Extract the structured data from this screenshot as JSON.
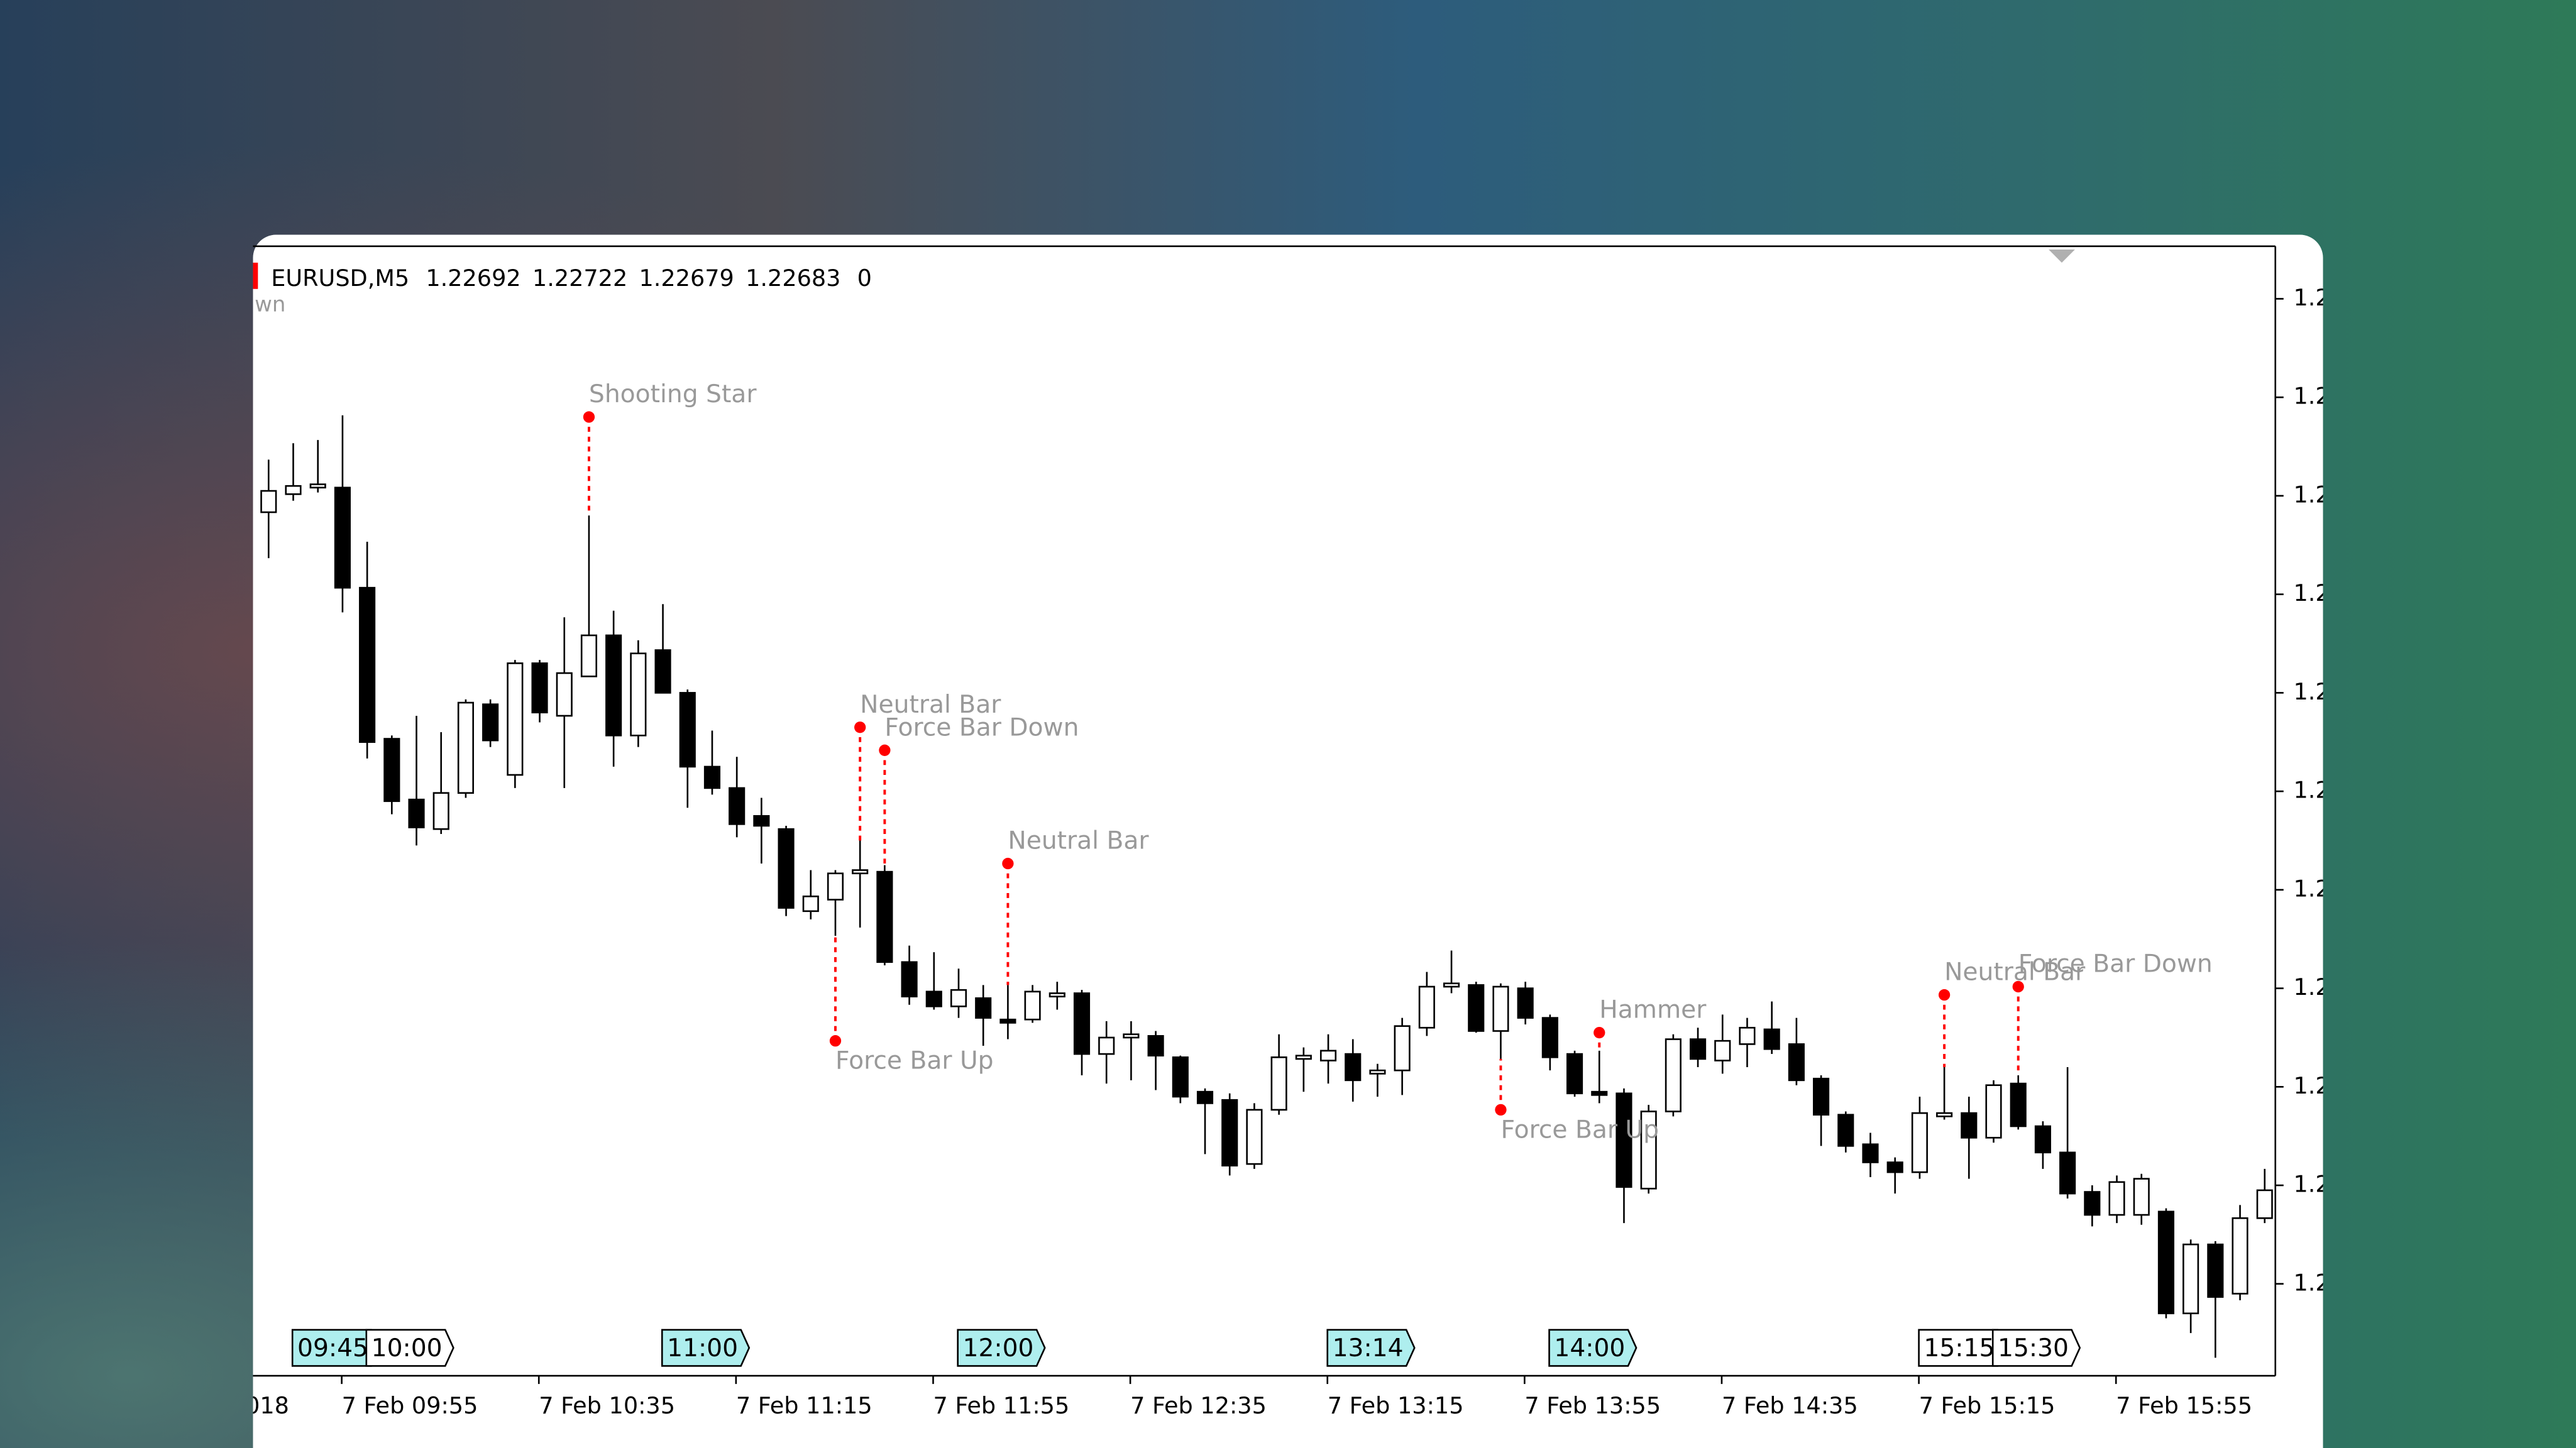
{
  "chart_data": {
    "type": "candlestick",
    "header": {
      "symbol": "EURUSD,M5",
      "open": 1.22692,
      "high": 1.22722,
      "low": 1.22679,
      "close": 1.22683,
      "volume": 0
    },
    "partial_labels": {
      "legend": "wn",
      "x": "018"
    },
    "categories": [
      null,
      null,
      null,
      "7 Feb 09:55",
      null,
      null,
      null,
      null,
      null,
      null,
      null,
      "7 Feb 10:35",
      null,
      null,
      null,
      null,
      null,
      null,
      null,
      "7 Feb 11:15",
      null,
      null,
      null,
      null,
      null,
      null,
      null,
      "7 Feb 11:55",
      null,
      null,
      null,
      null,
      null,
      null,
      null,
      "7 Feb 12:35",
      null,
      null,
      null,
      null,
      null,
      null,
      null,
      "7 Feb 13:15",
      null,
      null,
      null,
      null,
      null,
      null,
      null,
      "7 Feb 13:55",
      null,
      null,
      null,
      null,
      null,
      null,
      null,
      "7 Feb 14:35",
      null,
      null,
      null,
      null,
      null,
      null,
      null,
      "7 Feb 15:15",
      null,
      null,
      null,
      null,
      null,
      null,
      null,
      "7 Feb 15:55",
      null,
      null,
      null,
      null,
      null,
      null
    ],
    "open": [
      1.2311,
      1.23121,
      1.23125,
      1.23125,
      1.23064,
      1.22972,
      1.22935,
      1.22917,
      1.22939,
      1.22993,
      1.2295,
      1.23018,
      1.22986,
      1.2301,
      1.23035,
      1.22974,
      1.23026,
      1.23,
      1.22955,
      1.22942,
      1.22925,
      1.22917,
      1.22867,
      1.22874,
      1.2289,
      1.22891,
      1.22836,
      1.22818,
      1.22809,
      1.22814,
      1.22801,
      1.22801,
      1.22815,
      1.22817,
      1.2278,
      1.2279,
      1.22791,
      1.22778,
      1.22757,
      1.22752,
      1.22713,
      1.22746,
      1.22777,
      1.22776,
      1.2278,
      1.22768,
      1.2277,
      1.22796,
      1.22821,
      1.22822,
      1.22794,
      1.2282,
      1.22802,
      1.2278,
      1.22757,
      1.22756,
      1.22698,
      1.22745,
      1.22789,
      1.22776,
      1.22786,
      1.22795,
      1.22786,
      1.22765,
      1.22743,
      1.22725,
      1.22714,
      1.22708,
      1.22742,
      1.22744,
      1.22729,
      1.22762,
      1.22736,
      1.2272,
      1.22696,
      1.22682,
      1.22682,
      1.22684,
      1.22622,
      1.22664,
      1.22634,
      1.2268
    ],
    "high": [
      1.23142,
      1.23152,
      1.23154,
      1.23169,
      1.23092,
      1.22974,
      1.22986,
      1.22976,
      1.22996,
      1.22996,
      1.2302,
      1.2302,
      1.23046,
      1.23108,
      1.2305,
      1.23032,
      1.23054,
      1.23002,
      1.22977,
      1.22961,
      1.22936,
      1.22919,
      1.22892,
      1.22892,
      1.2291,
      1.22895,
      1.22846,
      1.22842,
      1.22832,
      1.22822,
      1.22822,
      1.22822,
      1.22824,
      1.22819,
      1.228,
      1.228,
      1.22794,
      1.22779,
      1.22759,
      1.22756,
      1.2275,
      1.22792,
      1.22784,
      1.22792,
      1.22789,
      1.22774,
      1.22802,
      1.2283,
      1.22843,
      1.22824,
      1.22823,
      1.22824,
      1.22804,
      1.22782,
      1.22782,
      1.22759,
      1.22749,
      1.22792,
      1.22796,
      1.22804,
      1.22802,
      1.22812,
      1.22802,
      1.22767,
      1.22745,
      1.22732,
      1.22717,
      1.22754,
      1.22772,
      1.22754,
      1.22764,
      1.22767,
      1.22739,
      1.22772,
      1.227,
      1.22706,
      1.22707,
      1.22686,
      1.22667,
      1.22666,
      1.22688,
      1.2271
    ],
    "low": [
      1.23082,
      1.23117,
      1.23122,
      1.23049,
      1.2296,
      1.22926,
      1.22907,
      1.22914,
      1.22936,
      1.22967,
      1.22942,
      1.22982,
      1.22942,
      1.2301,
      1.22955,
      1.22967,
      1.23,
      1.2293,
      1.22938,
      1.22912,
      1.22896,
      1.22864,
      1.22862,
      1.22852,
      1.22857,
      1.22834,
      1.2281,
      1.22807,
      1.22802,
      1.22785,
      1.22789,
      1.22799,
      1.22807,
      1.22767,
      1.22762,
      1.22764,
      1.22758,
      1.2275,
      1.22719,
      1.22706,
      1.2271,
      1.22743,
      1.22757,
      1.22762,
      1.22751,
      1.22754,
      1.22755,
      1.22791,
      1.22817,
      1.22793,
      1.22777,
      1.22798,
      1.2277,
      1.22754,
      1.2275,
      1.22677,
      1.22695,
      1.22742,
      1.22772,
      1.22768,
      1.22772,
      1.2278,
      1.22761,
      1.22724,
      1.2272,
      1.22705,
      1.22695,
      1.22704,
      1.2274,
      1.22704,
      1.22726,
      1.22734,
      1.2271,
      1.22692,
      1.22675,
      1.22677,
      1.22676,
      1.22619,
      1.2261,
      1.22595,
      1.2263,
      1.22677
    ],
    "close": [
      1.23123,
      1.23126,
      1.23127,
      1.23064,
      1.2297,
      1.22934,
      1.22918,
      1.22939,
      1.22994,
      1.22971,
      1.23018,
      1.22988,
      1.23012,
      1.23035,
      1.22974,
      1.23024,
      1.23,
      1.22955,
      1.22942,
      1.2292,
      1.22919,
      1.22869,
      1.22876,
      1.2289,
      1.22892,
      1.22836,
      1.22815,
      1.22809,
      1.22819,
      1.22802,
      1.22799,
      1.22818,
      1.22817,
      1.2278,
      1.2279,
      1.22792,
      1.22779,
      1.22754,
      1.2275,
      1.22712,
      1.22746,
      1.22778,
      1.22779,
      1.22782,
      1.22764,
      1.2277,
      1.22797,
      1.22821,
      1.22823,
      1.22794,
      1.22821,
      1.22802,
      1.22778,
      1.22756,
      1.22755,
      1.22699,
      1.22745,
      1.22789,
      1.22777,
      1.22788,
      1.22796,
      1.22783,
      1.22764,
      1.22743,
      1.22724,
      1.22714,
      1.22708,
      1.22744,
      1.22744,
      1.22729,
      1.22761,
      1.22736,
      1.2272,
      1.22695,
      1.22682,
      1.22702,
      1.22704,
      1.22622,
      1.22664,
      1.22632,
      1.2268,
      1.22697
    ],
    "up_color": "#ffffff",
    "down_color": "#000000",
    "line_color": "#000000",
    "ylim": [
      1.22584,
      1.23272
    ],
    "yticks": [
      {
        "value": 1.2264,
        "label": "1.2"
      },
      {
        "value": 1.227,
        "label": "1.2"
      },
      {
        "value": 1.2276,
        "label": "1.2"
      },
      {
        "value": 1.2282,
        "label": "1.2"
      },
      {
        "value": 1.2288,
        "label": "1.2"
      },
      {
        "value": 1.2294,
        "label": "1.2"
      },
      {
        "value": 1.23,
        "label": "1.2"
      },
      {
        "value": 1.2306,
        "label": "1.2"
      },
      {
        "value": 1.2312,
        "label": "1.2"
      },
      {
        "value": 1.2318,
        "label": "1.2"
      },
      {
        "value": 1.2324,
        "label": "1.2"
      }
    ],
    "grid": false,
    "annotation_color": "#ff0000",
    "annotations": [
      {
        "text": "Shooting Star",
        "value": 1.23168
      },
      {
        "text": "Neutral Bar",
        "value": 1.22979
      },
      {
        "text": "Force Bar Down",
        "value": 1.22965
      },
      {
        "text": "Force Bar Up",
        "value": 1.22788
      },
      {
        "text": "Neutral Bar",
        "value": 1.22896
      },
      {
        "text": "Force Bar Up",
        "value": 1.22746
      },
      {
        "text": "Hammer",
        "value": 1.22793
      },
      {
        "text": "Neutral Bar",
        "value": 1.22816
      },
      {
        "text": "Force Bar Down",
        "value": 1.22821
      }
    ],
    "time_flags": [
      {
        "text": "09:45",
        "fill": "#aeeeee"
      },
      {
        "text": "10:00",
        "fill": "#ffffff"
      },
      {
        "text": "11:00",
        "fill": "#aeeeee"
      },
      {
        "text": "12:00",
        "fill": "#aeeeee"
      },
      {
        "text": "13:14",
        "fill": "#aeeeee"
      },
      {
        "text": "14:00",
        "fill": "#aeeeee"
      },
      {
        "text": "15:15",
        "fill": "#ffffff"
      },
      {
        "text": "15:30",
        "fill": "#ffffff"
      }
    ]
  }
}
